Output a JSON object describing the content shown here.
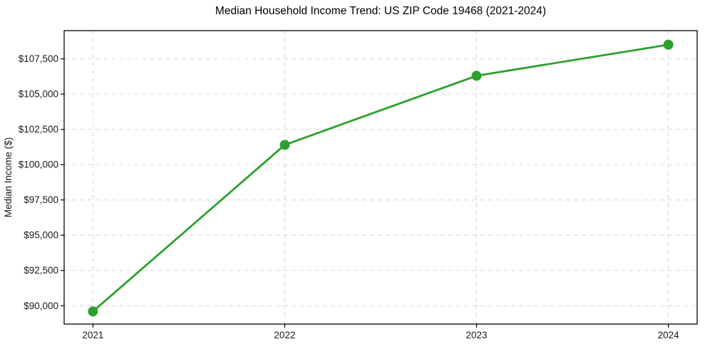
{
  "chart_data": {
    "type": "line",
    "title": "Median Household Income Trend: US ZIP Code 19468 (2021-2024)",
    "xlabel": "",
    "ylabel": "Median Income ($)",
    "categories": [
      "2021",
      "2022",
      "2023",
      "2024"
    ],
    "x_values": [
      2021,
      2022,
      2023,
      2024
    ],
    "series": [
      {
        "name": "Median Household Income",
        "values": [
          89600,
          101400,
          106300,
          108500
        ]
      }
    ],
    "values": [
      89600,
      101400,
      106300,
      108500
    ],
    "yticks": [
      90000,
      92500,
      95000,
      97500,
      100000,
      102500,
      105000,
      107500
    ],
    "ytick_labels": [
      "$90,000",
      "$92,500",
      "$95,000",
      "$97,500",
      "$100,000",
      "$102,500",
      "$105,000",
      "$107,500"
    ],
    "ylim": [
      88700,
      109500
    ],
    "xlim": [
      2020.85,
      2024.15
    ],
    "grid": true,
    "grid_style": "dashed",
    "legend_position": "none",
    "line_color": "#2ca02c",
    "marker": "circle",
    "marker_color": "#2ca02c",
    "grid_color": "#d6d6d6",
    "spine_color": "#000000",
    "text_color": "#191919",
    "background_color": "#ffffff"
  }
}
